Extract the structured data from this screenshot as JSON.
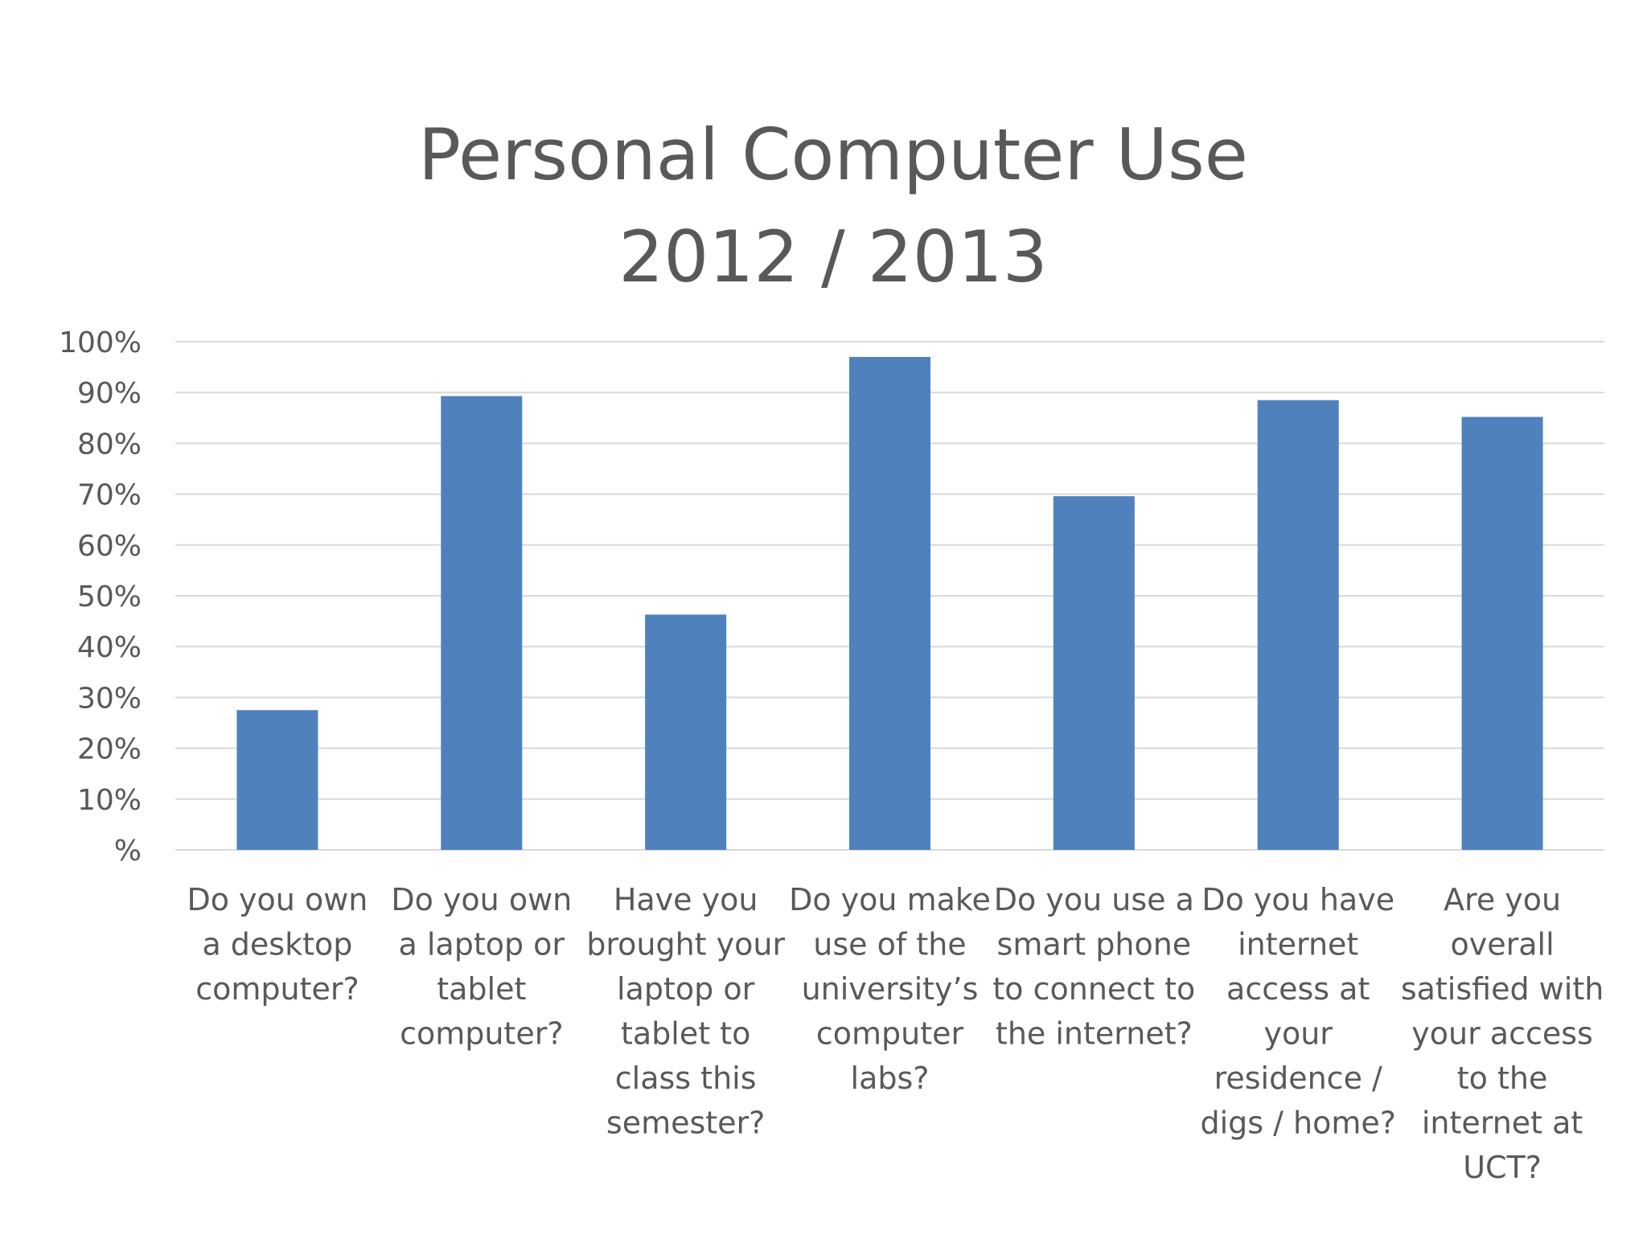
{
  "chart_data": {
    "type": "bar",
    "title": [
      "Personal Computer Use",
      "2012 / 2013"
    ],
    "xlabel": "",
    "ylabel": "",
    "ylim": [
      0,
      100
    ],
    "y_tick_labels": [
      "%",
      "10%",
      "20%",
      "30%",
      "40%",
      "50%",
      "60%",
      "70%",
      "80%",
      "90%",
      "100%"
    ],
    "grid": true,
    "legend": "none",
    "bar_color": "#4F81BD",
    "categories": [
      [
        "Do you own",
        "a desktop",
        "computer?"
      ],
      [
        "Do you own",
        "a laptop or",
        "tablet",
        "computer?"
      ],
      [
        "Have you",
        "brought your",
        "laptop or",
        "tablet to",
        "class this",
        "semester?"
      ],
      [
        "Do you make",
        "use of the",
        "university’s",
        "computer",
        "labs?"
      ],
      [
        "Do you use a",
        "smart phone",
        "to connect to",
        "the internet?"
      ],
      [
        "Do you have",
        "internet",
        "access at",
        "your",
        "residence /",
        "digs / home?"
      ],
      [
        "Are you",
        "overall",
        "satisfied with",
        "your access",
        "to the",
        "internet at",
        "UCT?"
      ]
    ],
    "values": [
      27.5,
      89.3,
      46.3,
      97.0,
      69.6,
      88.5,
      85.2
    ]
  }
}
